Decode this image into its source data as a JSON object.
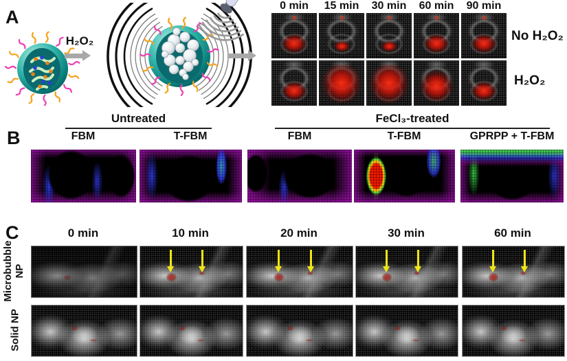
{
  "panelA": {
    "label": "A",
    "reaction_label": "H₂O₂",
    "grid": {
      "time_labels": [
        "0 min",
        "15 min",
        "30 min",
        "60 min",
        "90 min"
      ],
      "row_labels": [
        "No H₂O₂",
        "H₂O₂"
      ],
      "doppler_signal_rows": [
        [
          "md",
          "sm",
          "sm",
          "md",
          "md"
        ],
        [
          "md",
          "xl",
          "xl",
          "lg",
          "md"
        ]
      ]
    }
  },
  "panelB": {
    "label": "B",
    "groups": [
      {
        "label": "Untreated",
        "columns": [
          "FBM",
          "T-FBM"
        ]
      },
      {
        "label": "FeCl₃-treated",
        "columns": [
          "FBM",
          "T-FBM",
          "GPRPP + T-FBM"
        ]
      }
    ]
  },
  "panelC": {
    "label": "C",
    "time_labels": [
      "0 min",
      "10 min",
      "20 min",
      "30 min",
      "60 min"
    ],
    "rows": [
      {
        "label": "Microbubble NP",
        "cells": [
          {
            "arrows": 0,
            "dim": true
          },
          {
            "arrows": 2
          },
          {
            "arrows": 2
          },
          {
            "arrows": 2
          },
          {
            "arrows": 2
          }
        ]
      },
      {
        "label": "Solid NP",
        "cells": [
          {
            "arrows": 0
          },
          {
            "arrows": 0
          },
          {
            "arrows": 0
          },
          {
            "arrows": 0
          },
          {
            "arrows": 0
          }
        ]
      }
    ]
  },
  "colors": {
    "doppler_red": "#d81408",
    "heat_purple": "#8c0ca0",
    "heat_blue": "#2830e8",
    "heat_green": "#30c83c",
    "heat_red": "#e81000",
    "arrow_yellow": "#f0e414",
    "particle_teal": "#18978f",
    "ligand_orange": "#f6a21d",
    "ligand_magenta": "#ee3fb3"
  }
}
